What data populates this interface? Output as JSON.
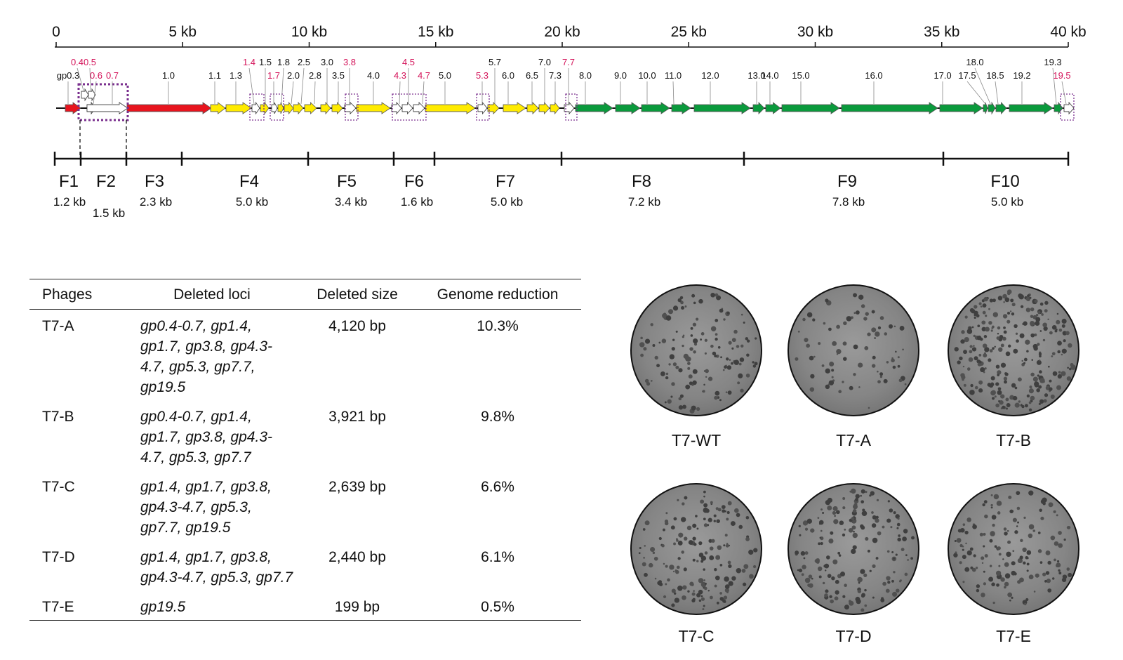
{
  "genome_map": {
    "scale_labels": [
      {
        "kb": 0,
        "label": "0"
      },
      {
        "kb": 5,
        "label": "5 kb"
      },
      {
        "kb": 10,
        "label": "10 kb"
      },
      {
        "kb": 15,
        "label": "15 kb"
      },
      {
        "kb": 20,
        "label": "20 kb"
      },
      {
        "kb": 25,
        "label": "25 kb"
      },
      {
        "kb": 30,
        "label": "30 kb"
      },
      {
        "kb": 35,
        "label": "35 kb"
      },
      {
        "kb": 40,
        "label": "40 kb"
      }
    ],
    "genes": [
      {
        "label": "gp0.3",
        "deleted": false,
        "color": "#e8141e",
        "tier": 1
      },
      {
        "label": "0.4",
        "deleted": true,
        "color": "#ffffff",
        "tier": 2
      },
      {
        "label": "0.5",
        "deleted": true,
        "color": "#ffffff",
        "tier": 2
      },
      {
        "label": "0.6",
        "deleted": true,
        "color": "#ffffff",
        "tier": 1
      },
      {
        "label": "0.7",
        "deleted": true,
        "color": "#ffffff",
        "tier": 1
      },
      {
        "label": "1.0",
        "deleted": false,
        "color": "#e8141e",
        "tier": 1
      },
      {
        "label": "1.1",
        "deleted": false,
        "color": "#ffeb00",
        "tier": 1
      },
      {
        "label": "1.3",
        "deleted": false,
        "color": "#ffeb00",
        "tier": 1
      },
      {
        "label": "1.4",
        "deleted": true,
        "color": "#ffffff",
        "tier": 2
      },
      {
        "label": "1.5",
        "deleted": false,
        "color": "#ffeb00",
        "tier": 2
      },
      {
        "label": "1.7",
        "deleted": true,
        "color": "#ffffff",
        "tier": 1
      },
      {
        "label": "1.8",
        "deleted": false,
        "color": "#ffeb00",
        "tier": 2
      },
      {
        "label": "2.0",
        "deleted": false,
        "color": "#ffeb00",
        "tier": 1
      },
      {
        "label": "2.5",
        "deleted": false,
        "color": "#ffeb00",
        "tier": 2
      },
      {
        "label": "2.8",
        "deleted": false,
        "color": "#ffeb00",
        "tier": 1
      },
      {
        "label": "3.0",
        "deleted": false,
        "color": "#ffeb00",
        "tier": 2
      },
      {
        "label": "3.5",
        "deleted": false,
        "color": "#ffeb00",
        "tier": 1
      },
      {
        "label": "3.8",
        "deleted": true,
        "color": "#ffffff",
        "tier": 2
      },
      {
        "label": "4.0",
        "deleted": false,
        "color": "#ffeb00",
        "tier": 1
      },
      {
        "label": "4.3",
        "deleted": true,
        "color": "#ffffff",
        "tier": 1
      },
      {
        "label": "4.5",
        "deleted": true,
        "color": "#ffffff",
        "tier": 2
      },
      {
        "label": "4.7",
        "deleted": true,
        "color": "#ffffff",
        "tier": 1
      },
      {
        "label": "5.0",
        "deleted": false,
        "color": "#ffeb00",
        "tier": 1
      },
      {
        "label": "5.3",
        "deleted": true,
        "color": "#ffffff",
        "tier": 1
      },
      {
        "label": "5.7",
        "deleted": false,
        "color": "#ffeb00",
        "tier": 2
      },
      {
        "label": "6.0",
        "deleted": false,
        "color": "#ffeb00",
        "tier": 1
      },
      {
        "label": "6.5",
        "deleted": false,
        "color": "#ffeb00",
        "tier": 1
      },
      {
        "label": "7.0",
        "deleted": false,
        "color": "#ffeb00",
        "tier": 2
      },
      {
        "label": "7.3",
        "deleted": false,
        "color": "#ffeb00",
        "tier": 1
      },
      {
        "label": "7.7",
        "deleted": true,
        "color": "#ffffff",
        "tier": 2
      },
      {
        "label": "8.0",
        "deleted": false,
        "color": "#0a9a3c",
        "tier": 1
      },
      {
        "label": "9.0",
        "deleted": false,
        "color": "#0a9a3c",
        "tier": 1
      },
      {
        "label": "10.0",
        "deleted": false,
        "color": "#0a9a3c",
        "tier": 1
      },
      {
        "label": "11.0",
        "deleted": false,
        "color": "#0a9a3c",
        "tier": 1
      },
      {
        "label": "12.0",
        "deleted": false,
        "color": "#0a9a3c",
        "tier": 1
      },
      {
        "label": "13.0",
        "deleted": false,
        "color": "#0a9a3c",
        "tier": 1
      },
      {
        "label": "14.0",
        "deleted": false,
        "color": "#0a9a3c",
        "tier": 1
      },
      {
        "label": "15.0",
        "deleted": false,
        "color": "#0a9a3c",
        "tier": 1
      },
      {
        "label": "16.0",
        "deleted": false,
        "color": "#0a9a3c",
        "tier": 1
      },
      {
        "label": "17.0",
        "deleted": false,
        "color": "#0a9a3c",
        "tier": 1
      },
      {
        "label": "17.5",
        "deleted": false,
        "color": "#0a9a3c",
        "tier": 1
      },
      {
        "label": "18.0",
        "deleted": false,
        "color": "#0a9a3c",
        "tier": 2
      },
      {
        "label": "18.5",
        "deleted": false,
        "color": "#0a9a3c",
        "tier": 1
      },
      {
        "label": "19.2",
        "deleted": false,
        "color": "#0a9a3c",
        "tier": 1
      },
      {
        "label": "19.3",
        "deleted": false,
        "color": "#0a9a3c",
        "tier": 2
      },
      {
        "label": "19.5",
        "deleted": true,
        "color": "#ffffff",
        "tier": 1
      }
    ],
    "deleted_label_color": "#d4145a",
    "box_color": "#7a2f8e",
    "fragments": [
      {
        "name": "F1",
        "size": "1.2 kb"
      },
      {
        "name": "F2",
        "size": "1.5 kb"
      },
      {
        "name": "F3",
        "size": "2.3 kb"
      },
      {
        "name": "F4",
        "size": "5.0 kb"
      },
      {
        "name": "F5",
        "size": "3.4 kb"
      },
      {
        "name": "F6",
        "size": "1.6 kb"
      },
      {
        "name": "F7",
        "size": "5.0 kb"
      },
      {
        "name": "F8",
        "size": "7.2 kb"
      },
      {
        "name": "F9",
        "size": "7.8 kb"
      },
      {
        "name": "F10",
        "size": "5.0 kb"
      }
    ]
  },
  "table": {
    "headers": [
      "Phages",
      "Deleted loci",
      "Deleted size",
      "Genome reduction"
    ],
    "rows": [
      {
        "phage": "T7-A",
        "loci": "gp0.4-0.7, gp1.4, gp1.7, gp3.8, gp4.3-4.7, gp5.3, gp7.7, gp19.5",
        "size": "4,120 bp",
        "reduction": "10.3%"
      },
      {
        "phage": "T7-B",
        "loci": "gp0.4-0.7, gp1.4, gp1.7, gp3.8, gp4.3-4.7, gp5.3, gp7.7",
        "size": "3,921 bp",
        "reduction": "9.8%"
      },
      {
        "phage": "T7-C",
        "loci": "gp1.4, gp1.7, gp3.8, gp4.3-4.7, gp5.3, gp7.7, gp19.5",
        "size": "2,639 bp",
        "reduction": "6.6%"
      },
      {
        "phage": "T7-D",
        "loci": "gp1.4, gp1.7, gp3.8, gp4.3-4.7, gp5.3, gp7.7",
        "size": "2,440 bp",
        "reduction": "6.1%"
      },
      {
        "phage": "T7-E",
        "loci": "gp19.5",
        "size": "199 bp",
        "reduction": "0.5%"
      }
    ]
  },
  "plates": [
    "T7-WT",
    "T7-A",
    "T7-B",
    "T7-C",
    "T7-D",
    "T7-E"
  ]
}
